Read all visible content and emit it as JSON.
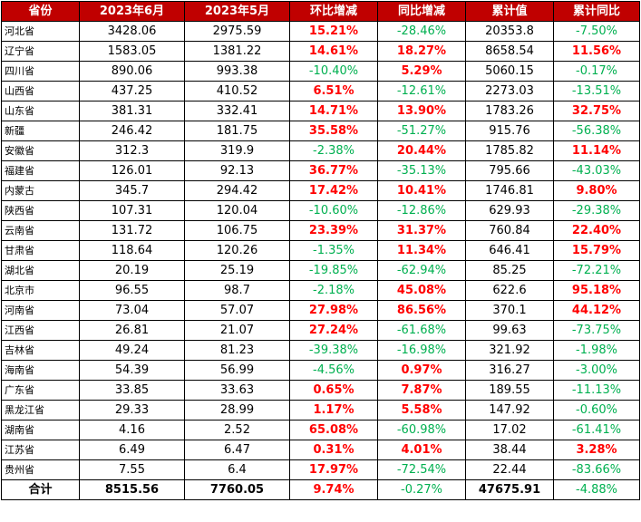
{
  "headers": [
    "省份",
    "2023年6月",
    "2023年5月",
    "环比增减",
    "同比增减",
    "累计值",
    "累计同比"
  ],
  "rows": [
    [
      "河北省",
      "3428.06",
      "2975.59",
      "15.21%",
      "-28.46%",
      "20353.8",
      "-7.50%"
    ],
    [
      "辽宁省",
      "1583.05",
      "1381.22",
      "14.61%",
      "18.27%",
      "8658.54",
      "11.56%"
    ],
    [
      "四川省",
      "890.06",
      "993.38",
      "-10.40%",
      "5.29%",
      "5060.15",
      "-0.17%"
    ],
    [
      "山西省",
      "437.25",
      "410.52",
      "6.51%",
      "-12.61%",
      "2273.03",
      "-13.51%"
    ],
    [
      "山东省",
      "381.31",
      "332.41",
      "14.71%",
      "13.90%",
      "1783.26",
      "32.75%"
    ],
    [
      "新疆",
      "246.42",
      "181.75",
      "35.58%",
      "-51.27%",
      "915.76",
      "-56.38%"
    ],
    [
      "安徽省",
      "312.3",
      "319.9",
      "-2.38%",
      "20.44%",
      "1785.82",
      "11.14%"
    ],
    [
      "福建省",
      "126.01",
      "92.13",
      "36.77%",
      "-35.13%",
      "795.66",
      "-43.03%"
    ],
    [
      "内蒙古",
      "345.7",
      "294.42",
      "17.42%",
      "10.41%",
      "1746.81",
      "9.80%"
    ],
    [
      "陕西省",
      "107.31",
      "120.04",
      "-10.60%",
      "-12.86%",
      "629.93",
      "-29.38%"
    ],
    [
      "云南省",
      "131.72",
      "106.75",
      "23.39%",
      "31.37%",
      "760.84",
      "22.40%"
    ],
    [
      "甘肃省",
      "118.64",
      "120.26",
      "-1.35%",
      "11.34%",
      "646.41",
      "15.79%"
    ],
    [
      "湖北省",
      "20.19",
      "25.19",
      "-19.85%",
      "-62.94%",
      "85.25",
      "-72.21%"
    ],
    [
      "北京市",
      "96.55",
      "98.7",
      "-2.18%",
      "45.08%",
      "622.6",
      "95.18%"
    ],
    [
      "河南省",
      "73.04",
      "57.07",
      "27.98%",
      "86.56%",
      "370.1",
      "44.12%"
    ],
    [
      "江西省",
      "26.81",
      "21.07",
      "27.24%",
      "-61.68%",
      "99.63",
      "-73.75%"
    ],
    [
      "吉林省",
      "49.24",
      "81.23",
      "-39.38%",
      "-16.98%",
      "321.92",
      "-1.98%"
    ],
    [
      "海南省",
      "54.39",
      "56.99",
      "-4.56%",
      "0.97%",
      "316.27",
      "-3.00%"
    ],
    [
      "广东省",
      "33.85",
      "33.63",
      "0.65%",
      "7.87%",
      "189.55",
      "-11.13%"
    ],
    [
      "黑龙江省",
      "29.33",
      "28.99",
      "1.17%",
      "5.58%",
      "147.92",
      "-0.60%"
    ],
    [
      "湖南省",
      "4.16",
      "2.52",
      "65.08%",
      "-60.98%",
      "17.02",
      "-61.41%"
    ],
    [
      "江苏省",
      "6.49",
      "6.47",
      "0.31%",
      "4.01%",
      "38.44",
      "3.28%"
    ],
    [
      "贵州省",
      "7.55",
      "6.4",
      "17.97%",
      "-72.54%",
      "22.44",
      "-83.66%"
    ]
  ],
  "total": [
    "合计",
    "8515.56",
    "7760.05",
    "9.74%",
    "-0.27%",
    "47675.91",
    "-4.88%"
  ],
  "colors": {
    "header_bg": "#c00000",
    "header_text": "#ffffff",
    "positive": "#ff0000",
    "negative": "#00b050"
  }
}
